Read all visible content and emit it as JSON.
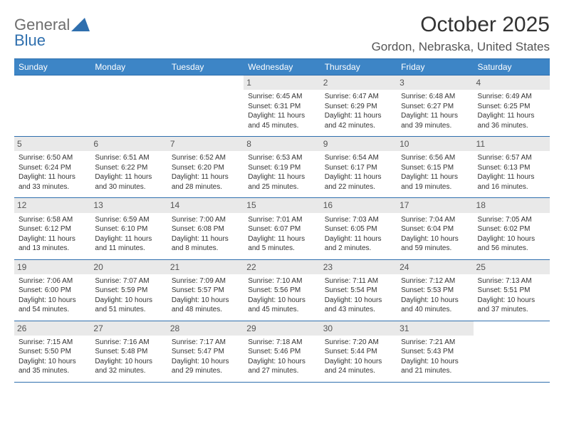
{
  "logo": {
    "text_general": "General",
    "text_blue": "Blue"
  },
  "header": {
    "month_title": "October 2025",
    "location": "Gordon, Nebraska, United States"
  },
  "colors": {
    "header_bg": "#3d85c6",
    "header_text": "#ffffff",
    "rule": "#2f6fae",
    "daynum_bg": "#e9e9e9",
    "daynum_text": "#555555",
    "body_text": "#333333",
    "page_bg": "#ffffff"
  },
  "typography": {
    "month_title_fontsize": 30,
    "location_fontsize": 17,
    "weekday_fontsize": 12,
    "daynum_fontsize": 12,
    "cell_fontsize": 10
  },
  "weekdays": [
    "Sunday",
    "Monday",
    "Tuesday",
    "Wednesday",
    "Thursday",
    "Friday",
    "Saturday"
  ],
  "weeks": [
    [
      null,
      null,
      null,
      {
        "n": "1",
        "sr": "Sunrise: 6:45 AM",
        "ss": "Sunset: 6:31 PM",
        "d1": "Daylight: 11 hours",
        "d2": "and 45 minutes."
      },
      {
        "n": "2",
        "sr": "Sunrise: 6:47 AM",
        "ss": "Sunset: 6:29 PM",
        "d1": "Daylight: 11 hours",
        "d2": "and 42 minutes."
      },
      {
        "n": "3",
        "sr": "Sunrise: 6:48 AM",
        "ss": "Sunset: 6:27 PM",
        "d1": "Daylight: 11 hours",
        "d2": "and 39 minutes."
      },
      {
        "n": "4",
        "sr": "Sunrise: 6:49 AM",
        "ss": "Sunset: 6:25 PM",
        "d1": "Daylight: 11 hours",
        "d2": "and 36 minutes."
      }
    ],
    [
      {
        "n": "5",
        "sr": "Sunrise: 6:50 AM",
        "ss": "Sunset: 6:24 PM",
        "d1": "Daylight: 11 hours",
        "d2": "and 33 minutes."
      },
      {
        "n": "6",
        "sr": "Sunrise: 6:51 AM",
        "ss": "Sunset: 6:22 PM",
        "d1": "Daylight: 11 hours",
        "d2": "and 30 minutes."
      },
      {
        "n": "7",
        "sr": "Sunrise: 6:52 AM",
        "ss": "Sunset: 6:20 PM",
        "d1": "Daylight: 11 hours",
        "d2": "and 28 minutes."
      },
      {
        "n": "8",
        "sr": "Sunrise: 6:53 AM",
        "ss": "Sunset: 6:19 PM",
        "d1": "Daylight: 11 hours",
        "d2": "and 25 minutes."
      },
      {
        "n": "9",
        "sr": "Sunrise: 6:54 AM",
        "ss": "Sunset: 6:17 PM",
        "d1": "Daylight: 11 hours",
        "d2": "and 22 minutes."
      },
      {
        "n": "10",
        "sr": "Sunrise: 6:56 AM",
        "ss": "Sunset: 6:15 PM",
        "d1": "Daylight: 11 hours",
        "d2": "and 19 minutes."
      },
      {
        "n": "11",
        "sr": "Sunrise: 6:57 AM",
        "ss": "Sunset: 6:13 PM",
        "d1": "Daylight: 11 hours",
        "d2": "and 16 minutes."
      }
    ],
    [
      {
        "n": "12",
        "sr": "Sunrise: 6:58 AM",
        "ss": "Sunset: 6:12 PM",
        "d1": "Daylight: 11 hours",
        "d2": "and 13 minutes."
      },
      {
        "n": "13",
        "sr": "Sunrise: 6:59 AM",
        "ss": "Sunset: 6:10 PM",
        "d1": "Daylight: 11 hours",
        "d2": "and 11 minutes."
      },
      {
        "n": "14",
        "sr": "Sunrise: 7:00 AM",
        "ss": "Sunset: 6:08 PM",
        "d1": "Daylight: 11 hours",
        "d2": "and 8 minutes."
      },
      {
        "n": "15",
        "sr": "Sunrise: 7:01 AM",
        "ss": "Sunset: 6:07 PM",
        "d1": "Daylight: 11 hours",
        "d2": "and 5 minutes."
      },
      {
        "n": "16",
        "sr": "Sunrise: 7:03 AM",
        "ss": "Sunset: 6:05 PM",
        "d1": "Daylight: 11 hours",
        "d2": "and 2 minutes."
      },
      {
        "n": "17",
        "sr": "Sunrise: 7:04 AM",
        "ss": "Sunset: 6:04 PM",
        "d1": "Daylight: 10 hours",
        "d2": "and 59 minutes."
      },
      {
        "n": "18",
        "sr": "Sunrise: 7:05 AM",
        "ss": "Sunset: 6:02 PM",
        "d1": "Daylight: 10 hours",
        "d2": "and 56 minutes."
      }
    ],
    [
      {
        "n": "19",
        "sr": "Sunrise: 7:06 AM",
        "ss": "Sunset: 6:00 PM",
        "d1": "Daylight: 10 hours",
        "d2": "and 54 minutes."
      },
      {
        "n": "20",
        "sr": "Sunrise: 7:07 AM",
        "ss": "Sunset: 5:59 PM",
        "d1": "Daylight: 10 hours",
        "d2": "and 51 minutes."
      },
      {
        "n": "21",
        "sr": "Sunrise: 7:09 AM",
        "ss": "Sunset: 5:57 PM",
        "d1": "Daylight: 10 hours",
        "d2": "and 48 minutes."
      },
      {
        "n": "22",
        "sr": "Sunrise: 7:10 AM",
        "ss": "Sunset: 5:56 PM",
        "d1": "Daylight: 10 hours",
        "d2": "and 45 minutes."
      },
      {
        "n": "23",
        "sr": "Sunrise: 7:11 AM",
        "ss": "Sunset: 5:54 PM",
        "d1": "Daylight: 10 hours",
        "d2": "and 43 minutes."
      },
      {
        "n": "24",
        "sr": "Sunrise: 7:12 AM",
        "ss": "Sunset: 5:53 PM",
        "d1": "Daylight: 10 hours",
        "d2": "and 40 minutes."
      },
      {
        "n": "25",
        "sr": "Sunrise: 7:13 AM",
        "ss": "Sunset: 5:51 PM",
        "d1": "Daylight: 10 hours",
        "d2": "and 37 minutes."
      }
    ],
    [
      {
        "n": "26",
        "sr": "Sunrise: 7:15 AM",
        "ss": "Sunset: 5:50 PM",
        "d1": "Daylight: 10 hours",
        "d2": "and 35 minutes."
      },
      {
        "n": "27",
        "sr": "Sunrise: 7:16 AM",
        "ss": "Sunset: 5:48 PM",
        "d1": "Daylight: 10 hours",
        "d2": "and 32 minutes."
      },
      {
        "n": "28",
        "sr": "Sunrise: 7:17 AM",
        "ss": "Sunset: 5:47 PM",
        "d1": "Daylight: 10 hours",
        "d2": "and 29 minutes."
      },
      {
        "n": "29",
        "sr": "Sunrise: 7:18 AM",
        "ss": "Sunset: 5:46 PM",
        "d1": "Daylight: 10 hours",
        "d2": "and 27 minutes."
      },
      {
        "n": "30",
        "sr": "Sunrise: 7:20 AM",
        "ss": "Sunset: 5:44 PM",
        "d1": "Daylight: 10 hours",
        "d2": "and 24 minutes."
      },
      {
        "n": "31",
        "sr": "Sunrise: 7:21 AM",
        "ss": "Sunset: 5:43 PM",
        "d1": "Daylight: 10 hours",
        "d2": "and 21 minutes."
      },
      null
    ]
  ]
}
